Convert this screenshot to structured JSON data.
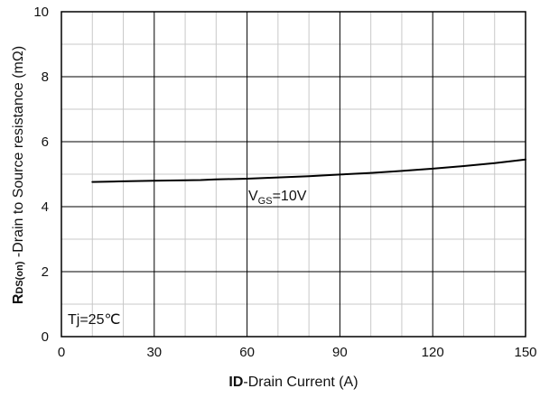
{
  "chart_data": {
    "type": "line",
    "xlabel": {
      "bold": "ID",
      "rest": "-Drain Current  (A)"
    },
    "ylabel": {
      "bold_main": "R",
      "bold_sub": "DS(on)",
      "rest": " -Drain to Source resistance  (mΩ)"
    },
    "xlim": [
      0,
      150
    ],
    "ylim": [
      0,
      10
    ],
    "xticks": [
      0,
      30,
      60,
      90,
      120,
      150
    ],
    "yticks": [
      0,
      2,
      4,
      6,
      8,
      10
    ],
    "x_minor_step": 10,
    "y_minor_step": 1,
    "grid": true,
    "series": [
      {
        "label": {
          "main": "V",
          "sub": "GS",
          "rest": "=10V"
        },
        "color": "#000000",
        "x": [
          10,
          20,
          30,
          40,
          45,
          50,
          60,
          70,
          80,
          90,
          100,
          110,
          120,
          130,
          140,
          150
        ],
        "y": [
          4.76,
          4.78,
          4.8,
          4.81,
          4.82,
          4.84,
          4.86,
          4.9,
          4.94,
          4.99,
          5.04,
          5.1,
          5.17,
          5.25,
          5.34,
          5.45
        ]
      }
    ],
    "annotations": [
      {
        "text": "Tj=25℃"
      }
    ]
  }
}
